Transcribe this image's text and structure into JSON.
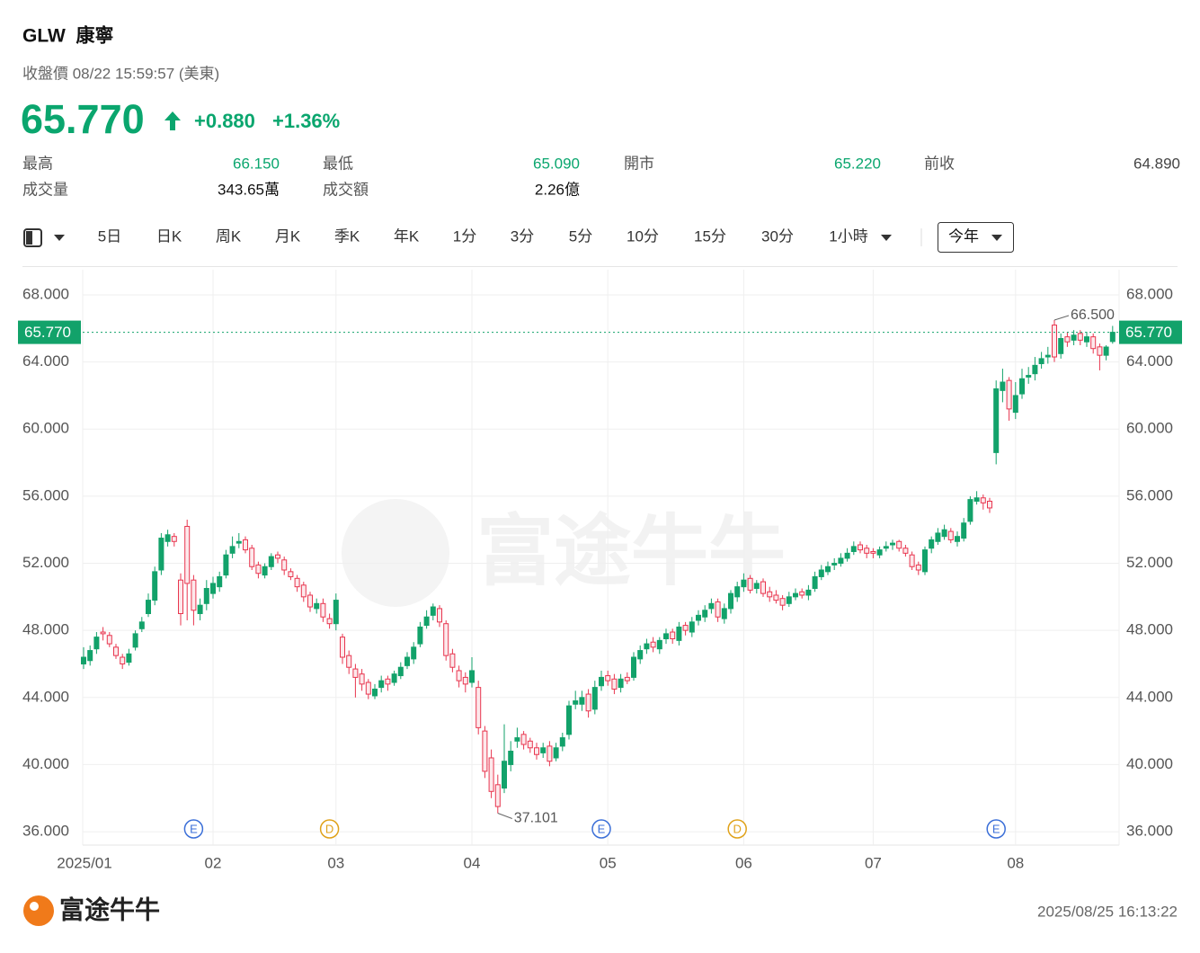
{
  "header": {
    "title": "GLW  康寧",
    "subtitle": "收盤價 08/22 15:59:57 (美東)",
    "price": "65.770",
    "change": "+0.880",
    "change_pct": "+1.36%",
    "stats": [
      {
        "label": "最高",
        "value": "66.150"
      },
      {
        "label": "最低",
        "value": "65.090"
      },
      {
        "label": "開市",
        "value": "65.220"
      },
      {
        "label": "前收",
        "value": "64.890"
      },
      {
        "label": "成交量",
        "value": "343.65萬"
      },
      {
        "label": "成交額",
        "value": "2.26億"
      }
    ]
  },
  "tabs": [
    "5日",
    "日K",
    "周K",
    "月K",
    "季K",
    "年K",
    "1分",
    "3分",
    "5分",
    "10分",
    "15分",
    "30分",
    "1小時"
  ],
  "range_button": "今年",
  "watermark": "富途牛牛",
  "footer": {
    "brand": "富途牛牛",
    "timestamp": "2025/08/25 16:13:22"
  },
  "chart_data": {
    "type": "candlestick",
    "categories": [
      "2025/01",
      null,
      null,
      null,
      null,
      null,
      null,
      null,
      null,
      null,
      null,
      null,
      null,
      null,
      null,
      null,
      null,
      null,
      null,
      null,
      "02",
      null,
      null,
      null,
      null,
      null,
      null,
      null,
      null,
      null,
      null,
      null,
      null,
      null,
      null,
      null,
      null,
      null,
      null,
      "03",
      null,
      null,
      null,
      null,
      null,
      null,
      null,
      null,
      null,
      null,
      null,
      null,
      null,
      null,
      null,
      null,
      null,
      null,
      null,
      null,
      "04",
      null,
      null,
      null,
      null,
      null,
      null,
      null,
      null,
      null,
      null,
      null,
      null,
      null,
      null,
      null,
      null,
      null,
      null,
      null,
      null,
      "05",
      null,
      null,
      null,
      null,
      null,
      null,
      null,
      null,
      null,
      null,
      null,
      null,
      null,
      null,
      null,
      null,
      null,
      null,
      null,
      null,
      "06",
      null,
      null,
      null,
      null,
      null,
      null,
      null,
      null,
      null,
      null,
      null,
      null,
      null,
      null,
      null,
      null,
      null,
      null,
      null,
      "07",
      null,
      null,
      null,
      null,
      null,
      null,
      null,
      null,
      null,
      null,
      null,
      null,
      null,
      null,
      null,
      null,
      null,
      null,
      null,
      null,
      null,
      "08",
      null,
      null,
      null,
      null,
      null,
      null,
      null,
      null,
      null,
      null,
      null,
      null,
      null,
      null,
      null
    ],
    "open": [
      46.0,
      46.2,
      46.9,
      47.9,
      47.7,
      47.0,
      46.4,
      46.1,
      47.0,
      48.1,
      49.0,
      49.8,
      51.6,
      53.3,
      53.6,
      51.0,
      54.2,
      51.0,
      49.0,
      49.6,
      50.2,
      50.6,
      51.3,
      52.6,
      53.2,
      53.4,
      52.9,
      51.9,
      51.3,
      51.8,
      52.5,
      52.2,
      51.5,
      51.1,
      50.7,
      50.1,
      49.3,
      49.6,
      48.7,
      48.4,
      47.6,
      46.5,
      45.7,
      45.4,
      44.9,
      44.1,
      44.6,
      45.1,
      44.9,
      45.3,
      45.9,
      46.3,
      47.2,
      48.3,
      48.9,
      49.3,
      48.4,
      46.6,
      45.6,
      45.2,
      44.9,
      44.6,
      42.0,
      40.4,
      38.8,
      38.6,
      40.0,
      41.4,
      41.8,
      41.4,
      41.0,
      40.7,
      41.1,
      40.4,
      41.1,
      41.8,
      43.6,
      43.6,
      44.2,
      43.3,
      44.7,
      45.3,
      45.1,
      44.6,
      45.2,
      45.2,
      46.3,
      46.9,
      47.3,
      46.9,
      47.5,
      47.9,
      47.4,
      48.3,
      47.9,
      48.6,
      48.8,
      49.3,
      49.7,
      48.7,
      49.3,
      50.0,
      50.6,
      51.1,
      50.5,
      50.9,
      50.3,
      50.1,
      49.9,
      49.6,
      50.0,
      50.3,
      50.1,
      50.5,
      51.2,
      51.5,
      51.9,
      52.0,
      52.3,
      52.7,
      53.1,
      52.9,
      52.7,
      52.5,
      52.9,
      53.1,
      53.3,
      52.9,
      52.5,
      51.9,
      51.5,
      52.9,
      53.3,
      53.6,
      53.9,
      53.3,
      53.5,
      54.5,
      55.7,
      55.9,
      55.7,
      58.6,
      62.3,
      62.9,
      61.0,
      62.1,
      63.1,
      63.3,
      63.9,
      64.3,
      66.2,
      64.5,
      65.5,
      65.3,
      65.7,
      65.2,
      65.5,
      64.9,
      64.4,
      65.22
    ],
    "high": [
      47.0,
      47.1,
      47.9,
      48.2,
      47.9,
      47.2,
      46.6,
      46.9,
      48.0,
      48.8,
      50.2,
      51.8,
      53.8,
      54.0,
      53.8,
      51.4,
      54.6,
      51.3,
      49.9,
      51.0,
      51.2,
      51.5,
      52.8,
      53.6,
      53.8,
      53.6,
      53.1,
      52.1,
      52.0,
      52.6,
      52.7,
      52.4,
      51.7,
      51.3,
      50.9,
      50.3,
      49.9,
      49.9,
      49.0,
      50.2,
      47.8,
      46.8,
      46.0,
      45.7,
      45.1,
      44.8,
      45.3,
      45.3,
      45.6,
      46.1,
      46.7,
      47.3,
      48.5,
      49.2,
      49.6,
      49.5,
      48.6,
      46.9,
      45.9,
      45.5,
      46.4,
      45.0,
      42.3,
      40.9,
      39.4,
      42.4,
      41.4,
      42.2,
      42.0,
      41.6,
      41.3,
      41.3,
      41.4,
      41.3,
      41.9,
      43.8,
      44.4,
      44.4,
      44.5,
      45.0,
      45.6,
      45.6,
      45.4,
      45.4,
      45.5,
      46.7,
      47.1,
      47.5,
      47.6,
      47.6,
      48.1,
      48.1,
      48.5,
      48.5,
      48.8,
      49.2,
      49.5,
      49.9,
      49.9,
      49.6,
      50.4,
      50.9,
      51.4,
      51.3,
      51.0,
      51.1,
      50.6,
      50.4,
      50.1,
      50.3,
      50.5,
      50.5,
      50.7,
      51.5,
      51.9,
      52.1,
      52.3,
      52.6,
      52.9,
      53.3,
      53.3,
      53.1,
      52.9,
      53.0,
      53.3,
      53.4,
      53.4,
      53.1,
      52.7,
      52.1,
      53.0,
      53.6,
      54.1,
      54.3,
      54.1,
      53.9,
      54.7,
      56.0,
      56.3,
      56.1,
      55.9,
      62.9,
      63.6,
      63.1,
      62.8,
      63.6,
      63.7,
      64.3,
      64.6,
      64.9,
      66.5,
      65.7,
      65.8,
      65.9,
      65.9,
      65.8,
      65.7,
      65.1,
      65.0,
      66.15
    ],
    "low": [
      45.7,
      45.9,
      46.6,
      47.4,
      47.0,
      46.3,
      45.7,
      45.9,
      46.8,
      47.9,
      48.8,
      49.5,
      51.3,
      53.0,
      53.0,
      48.3,
      48.6,
      48.3,
      48.6,
      49.2,
      49.9,
      50.3,
      51.1,
      52.3,
      52.9,
      52.6,
      51.6,
      51.1,
      51.1,
      51.6,
      52.0,
      51.3,
      51.0,
      50.3,
      49.7,
      49.1,
      49.0,
      48.5,
      48.1,
      48.0,
      46.0,
      45.4,
      44.0,
      44.4,
      43.9,
      43.9,
      44.3,
      44.4,
      44.7,
      45.1,
      45.7,
      46.0,
      47.0,
      48.1,
      48.6,
      48.2,
      46.2,
      45.5,
      44.6,
      44.3,
      44.6,
      41.8,
      39.2,
      38.0,
      37.101,
      38.3,
      39.6,
      41.0,
      40.9,
      40.7,
      40.3,
      40.4,
      39.9,
      40.2,
      40.8,
      41.5,
      43.3,
      43.2,
      42.8,
      43.0,
      44.4,
      44.7,
      44.2,
      44.3,
      44.8,
      45.0,
      46.0,
      46.6,
      46.7,
      46.6,
      47.2,
      47.2,
      47.1,
      47.7,
      47.6,
      48.3,
      48.5,
      49.0,
      48.5,
      48.4,
      49.0,
      49.7,
      50.3,
      50.2,
      50.2,
      50.0,
      49.7,
      49.6,
      49.2,
      49.4,
      49.8,
      49.9,
      49.8,
      50.3,
      51.0,
      51.3,
      51.6,
      51.8,
      52.1,
      52.5,
      52.6,
      52.3,
      52.3,
      52.3,
      52.7,
      52.8,
      52.7,
      52.4,
      51.6,
      51.3,
      51.3,
      52.6,
      53.1,
      53.4,
      53.2,
      53.0,
      53.3,
      54.3,
      55.5,
      55.2,
      55.0,
      57.9,
      61.6,
      60.5,
      60.6,
      61.8,
      62.7,
      62.9,
      63.6,
      63.9,
      64.0,
      64.2,
      64.9,
      65.0,
      65.0,
      64.9,
      64.5,
      63.5,
      64.1,
      65.09
    ],
    "close": [
      46.4,
      46.8,
      47.6,
      47.8,
      47.2,
      46.5,
      46.0,
      46.6,
      47.8,
      48.5,
      49.8,
      51.5,
      53.5,
      53.7,
      53.3,
      49.0,
      50.8,
      49.2,
      49.5,
      50.5,
      50.8,
      51.2,
      52.5,
      53.0,
      53.3,
      52.8,
      51.8,
      51.4,
      51.8,
      52.4,
      52.3,
      51.6,
      51.2,
      50.6,
      50.0,
      49.4,
      49.6,
      48.8,
      48.4,
      49.8,
      46.4,
      45.8,
      45.2,
      44.8,
      44.2,
      44.5,
      45.0,
      44.8,
      45.4,
      45.8,
      46.4,
      47.0,
      48.2,
      48.8,
      49.4,
      48.5,
      46.5,
      45.8,
      45.0,
      44.8,
      45.6,
      42.2,
      39.6,
      38.4,
      37.5,
      40.2,
      40.8,
      41.6,
      41.2,
      41.0,
      40.6,
      41.0,
      40.2,
      41.0,
      41.6,
      43.5,
      43.8,
      44.0,
      43.2,
      44.6,
      45.2,
      45.0,
      44.5,
      45.1,
      45.0,
      46.4,
      46.8,
      47.2,
      47.0,
      47.4,
      47.8,
      47.5,
      48.2,
      48.0,
      48.5,
      48.9,
      49.2,
      49.6,
      48.8,
      49.3,
      50.2,
      50.6,
      51.0,
      50.4,
      50.8,
      50.2,
      50.0,
      49.8,
      49.5,
      50.0,
      50.2,
      50.1,
      50.4,
      51.2,
      51.6,
      51.8,
      52.0,
      52.3,
      52.6,
      53.0,
      52.8,
      52.6,
      52.6,
      52.8,
      53.0,
      53.2,
      52.9,
      52.6,
      51.8,
      51.6,
      52.8,
      53.4,
      53.8,
      54.0,
      53.4,
      53.6,
      54.4,
      55.8,
      55.9,
      55.6,
      55.3,
      62.4,
      62.8,
      61.2,
      62.0,
      63.0,
      63.2,
      63.8,
      64.2,
      64.4,
      64.3,
      65.4,
      65.2,
      65.6,
      65.3,
      65.5,
      64.8,
      64.4,
      64.89,
      65.77
    ],
    "events": [
      null,
      null,
      null,
      null,
      null,
      null,
      null,
      null,
      null,
      null,
      null,
      null,
      null,
      null,
      null,
      null,
      null,
      "E",
      null,
      null,
      null,
      null,
      null,
      null,
      null,
      null,
      null,
      null,
      null,
      null,
      null,
      null,
      null,
      null,
      null,
      null,
      null,
      null,
      "D",
      null,
      null,
      null,
      null,
      null,
      null,
      null,
      null,
      null,
      null,
      null,
      null,
      null,
      null,
      null,
      null,
      null,
      null,
      null,
      null,
      null,
      null,
      null,
      null,
      null,
      null,
      null,
      null,
      null,
      null,
      null,
      null,
      null,
      null,
      null,
      null,
      null,
      null,
      null,
      null,
      null,
      "E",
      null,
      null,
      null,
      null,
      null,
      null,
      null,
      null,
      null,
      null,
      null,
      null,
      null,
      null,
      null,
      null,
      null,
      null,
      null,
      null,
      "D",
      null,
      null,
      null,
      null,
      null,
      null,
      null,
      null,
      null,
      null,
      null,
      null,
      null,
      null,
      null,
      null,
      null,
      null,
      null,
      null,
      null,
      null,
      null,
      null,
      null,
      null,
      null,
      null,
      null,
      null,
      null,
      null,
      null,
      null,
      null,
      null,
      null,
      null,
      null,
      "E",
      null,
      null,
      null,
      null,
      null,
      null,
      null,
      null,
      null,
      null,
      null,
      null,
      null,
      null,
      null,
      null,
      null,
      null
    ],
    "event_colors": {
      "E": "#3b6fd8",
      "D": "#e0a21a"
    },
    "up_color": "#12a26a",
    "down_color": "#e8364f",
    "ylim": [
      35.2,
      69.5
    ],
    "yticks": [
      {
        "value": 36,
        "label": "36.000"
      },
      {
        "value": 40,
        "label": "40.000"
      },
      {
        "value": 44,
        "label": "44.000"
      },
      {
        "value": 48,
        "label": "48.000"
      },
      {
        "value": 52,
        "label": "52.000"
      },
      {
        "value": 56,
        "label": "56.000"
      },
      {
        "value": 60,
        "label": "60.000"
      },
      {
        "value": 64,
        "label": "64.000"
      },
      {
        "value": 68,
        "label": "68.000"
      }
    ],
    "last_price": {
      "value": 65.77,
      "label": "65.770"
    },
    "annotations": [
      {
        "value": 66.5,
        "label": "66.500"
      },
      {
        "value": 37.101,
        "label": "37.101"
      }
    ],
    "grid": true
  }
}
